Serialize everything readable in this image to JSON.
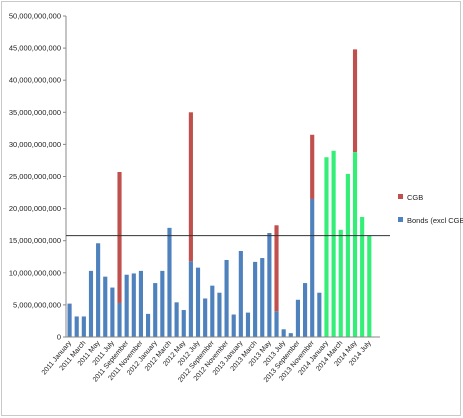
{
  "chart_data": {
    "type": "bar",
    "stacked": true,
    "ylim": [
      0,
      50000000000
    ],
    "y_ticks": [
      "0",
      "5,000,000,000",
      "10,000,000,000",
      "15,000,000,000",
      "20,000,000,000",
      "25,000,000,000",
      "30,000,000,000",
      "35,000,000,000",
      "40,000,000,000",
      "45,000,000,000",
      "50,000,000,000"
    ],
    "y_tick_values": [
      0,
      5000000000,
      10000000000,
      15000000000,
      20000000000,
      25000000000,
      30000000000,
      35000000000,
      40000000000,
      45000000000,
      50000000000
    ],
    "grid": false,
    "reference_line": 15800000000,
    "legend_position": "right",
    "categories": [
      "2011 January",
      "2011 February",
      "2011 March",
      "2011 April",
      "2011 May",
      "2011 June",
      "2011 July",
      "2011 August",
      "2011 September",
      "2011 October",
      "2011 November",
      "2011 December",
      "2012 January",
      "2012 February",
      "2012 March",
      "2012 April",
      "2012 May",
      "2012 June",
      "2012 July",
      "2012 August",
      "2012 September",
      "2012 October",
      "2012 November",
      "2012 December",
      "2013 January",
      "2013 February",
      "2013 March",
      "2013 April",
      "2013 May",
      "2013 June",
      "2013 July",
      "2013 August",
      "2013 September",
      "2013 October",
      "2013 November",
      "2013 December",
      "2014 January",
      "2014 February",
      "2014 March",
      "2014 April",
      "2014 May",
      "2014 June",
      "2014 July",
      "2014 August"
    ],
    "tick_labels": [
      "2011 January",
      "2011 March",
      "2011 May",
      "2011 July",
      "2011 September",
      "2011 November",
      "2012 January",
      "2012 March",
      "2012 May",
      "2012 July",
      "2012 September",
      "2012 November",
      "2013 January",
      "2013 March",
      "2013 May",
      "2013 July",
      "2013 September",
      "2013 November",
      "2014 January",
      "2014 March",
      "2014 May",
      "2014 July"
    ],
    "series": [
      {
        "name": "Bonds (excl CGB)",
        "color": "#4f81bd",
        "values": [
          5200000000,
          3200000000,
          3200000000,
          10300000000,
          14600000000,
          9400000000,
          7700000000,
          5300000000,
          9700000000,
          9900000000,
          10300000000,
          3600000000,
          8400000000,
          10300000000,
          17000000000,
          5400000000,
          4200000000,
          11800000000,
          10800000000,
          6000000000,
          8000000000,
          6900000000,
          12000000000,
          3500000000,
          13400000000,
          3800000000,
          11700000000,
          12300000000,
          16200000000,
          4000000000,
          1200000000,
          600000000,
          5800000000,
          8400000000,
          21500000000,
          6900000000,
          null,
          null,
          null,
          null,
          null,
          null,
          null,
          null
        ]
      },
      {
        "name": "CGB",
        "color": "#c0504d",
        "values": [
          0,
          0,
          0,
          0,
          0,
          0,
          0,
          20400000000,
          0,
          0,
          0,
          0,
          0,
          0,
          0,
          0,
          0,
          23200000000,
          0,
          0,
          0,
          0,
          0,
          0,
          0,
          0,
          0,
          0,
          0,
          13400000000,
          0,
          0,
          0,
          0,
          10000000000,
          0,
          null,
          null,
          null,
          null,
          null,
          null,
          null,
          null
        ]
      }
    ],
    "highlight_series": {
      "color": "#33ee77",
      "values": [
        null,
        null,
        null,
        null,
        null,
        null,
        null,
        null,
        null,
        null,
        null,
        null,
        null,
        null,
        null,
        null,
        null,
        null,
        null,
        null,
        null,
        null,
        null,
        null,
        null,
        null,
        null,
        null,
        null,
        null,
        null,
        null,
        null,
        null,
        null,
        null,
        28000000000,
        29000000000,
        16700000000,
        25400000000,
        28800000000,
        18700000000,
        15800000000,
        null
      ],
      "overlay_cgb": [
        null,
        null,
        null,
        null,
        null,
        null,
        null,
        null,
        null,
        null,
        null,
        null,
        null,
        null,
        null,
        null,
        null,
        null,
        null,
        null,
        null,
        null,
        null,
        null,
        null,
        null,
        null,
        null,
        null,
        null,
        null,
        null,
        null,
        null,
        null,
        null,
        null,
        null,
        null,
        null,
        44800000000,
        null,
        null,
        null
      ]
    }
  },
  "legend": [
    {
      "label": "CGB",
      "color": "#c0504d"
    },
    {
      "label": "Bonds (excl CGB)",
      "color": "#4f81bd"
    }
  ]
}
